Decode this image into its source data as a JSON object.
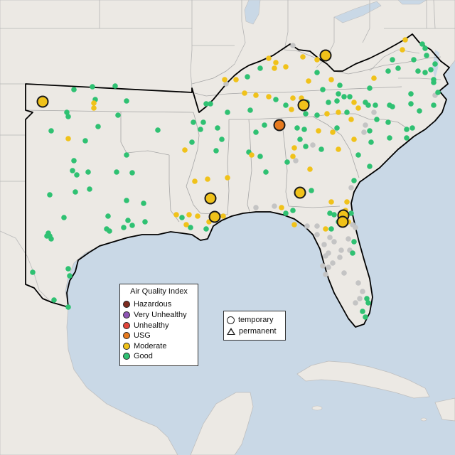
{
  "legend_aqi": {
    "title": "Air Quality Index",
    "items": [
      {
        "label": "Hazardous",
        "color": "#7e2b1f"
      },
      {
        "label": "Very Unhealthy",
        "color": "#8f56b4"
      },
      {
        "label": "Unhealthy",
        "color": "#e2453a"
      },
      {
        "label": "USG",
        "color": "#e77a1e"
      },
      {
        "label": "Moderate",
        "color": "#f0c21a"
      },
      {
        "label": "Good",
        "color": "#2fc172"
      }
    ]
  },
  "legend_type": {
    "items": [
      {
        "label": "temporary",
        "shape": "circle"
      },
      {
        "label": "permanent",
        "shape": "triangle"
      }
    ]
  },
  "colors": {
    "water": "#c9d8e6",
    "land": "#ece9e4",
    "region_outline": "#000000",
    "no_data": "#c4c4c4"
  }
}
